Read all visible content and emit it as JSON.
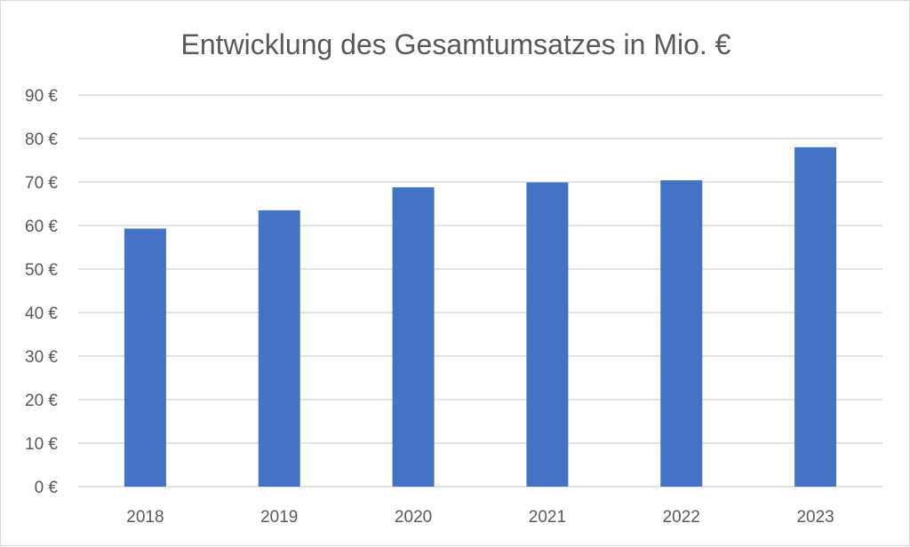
{
  "chart_data": {
    "type": "bar",
    "title": "Entwicklung des Gesamtumsatzes in Mio. €",
    "categories": [
      "2018",
      "2019",
      "2020",
      "2021",
      "2022",
      "2023"
    ],
    "values": [
      59.3,
      63.5,
      68.8,
      69.9,
      70.4,
      78.0
    ],
    "ylim": [
      0,
      90
    ],
    "yticks": [
      "0 €",
      "10 €",
      "20 €",
      "30 €",
      "40 €",
      "50 €",
      "60 €",
      "70 €",
      "80 €",
      "90 €"
    ],
    "xlabel": "",
    "ylabel": "",
    "grid": true,
    "legend": "none",
    "bar_color": "#4472C4"
  }
}
